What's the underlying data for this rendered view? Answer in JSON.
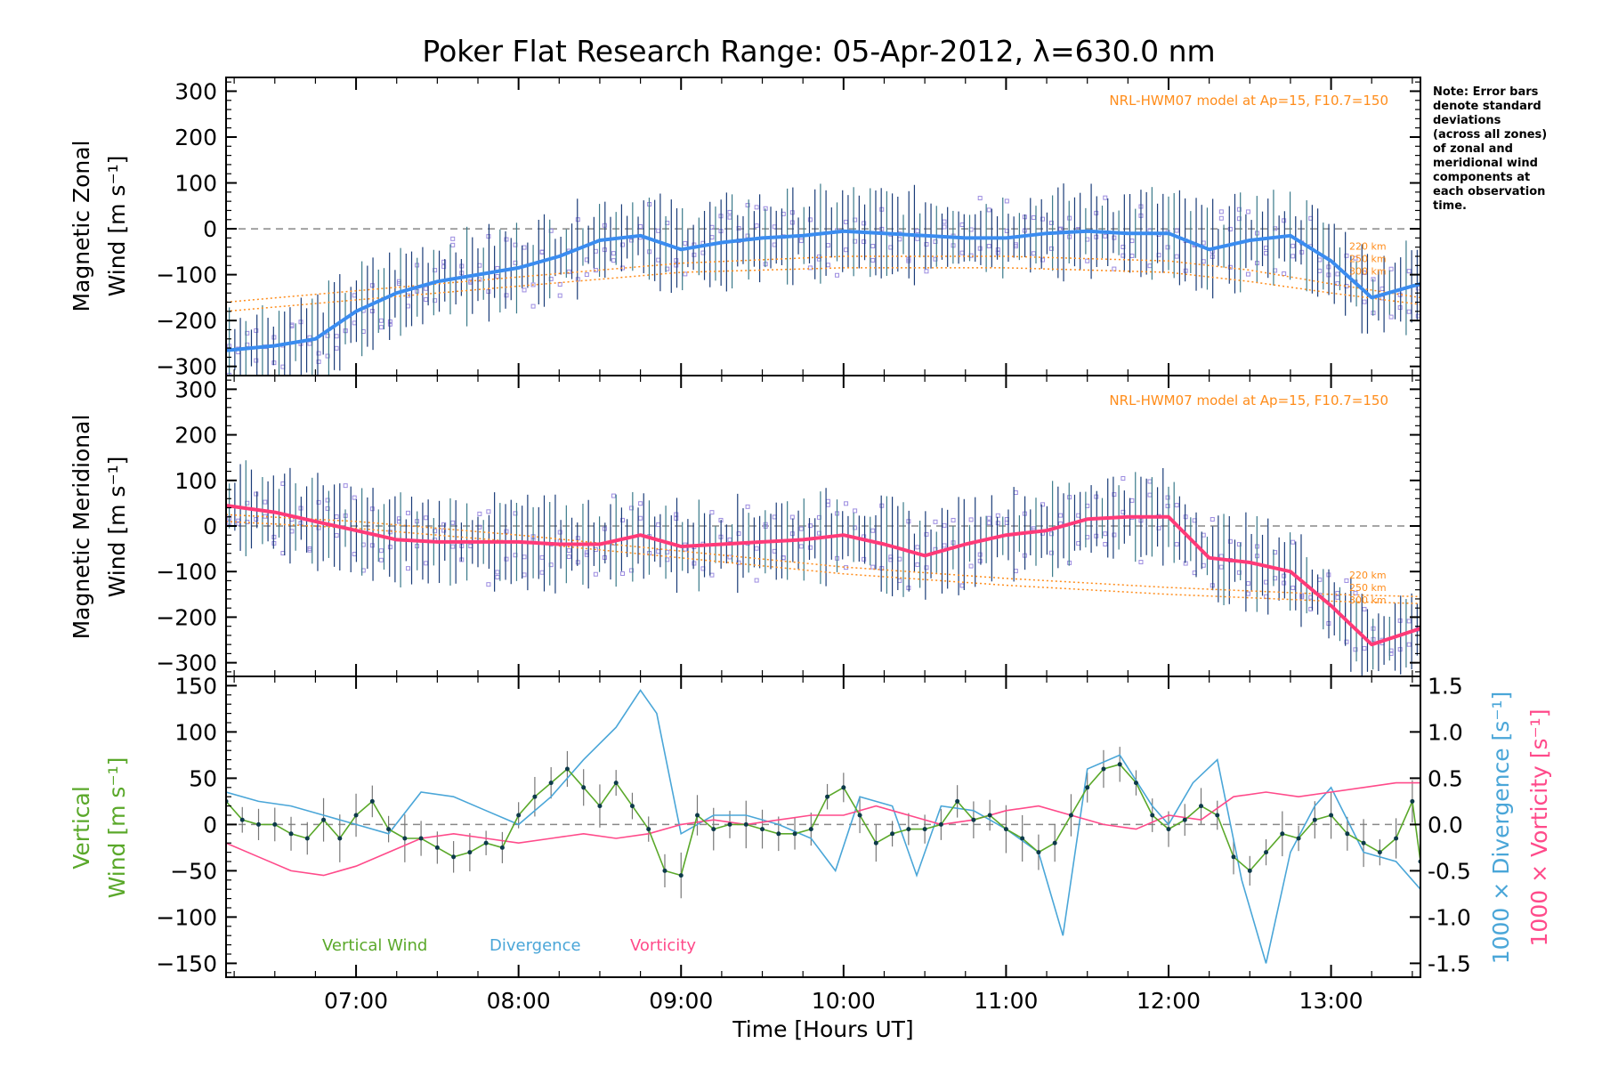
{
  "title": "Poker Flat Research Range: 05-Apr-2012, λ=630.0 nm",
  "note_lines": [
    "Note: Error bars",
    "denote standard",
    "deviations",
    "(across all zones)",
    "of zonal and",
    "meridional wind",
    "components at",
    "each observation",
    "time."
  ],
  "colors": {
    "zonal_mean": "#3a8cf0",
    "meridional_mean": "#ff3a78",
    "vertical": "#5aa82a",
    "divergence": "#4aa6d8",
    "vorticity": "#ff4a8a",
    "model": "#ff8c1a",
    "zone_points": "#9c8ce0",
    "errorbar": "#1a3c78"
  },
  "chart_data": [
    {
      "type": "line",
      "panel": "zonal",
      "ylabel_line1": "Magnetic Zonal",
      "ylabel_line2": "Wind [m s⁻¹]",
      "xlim": [
        6.2,
        13.55
      ],
      "ylim": [
        -320,
        330
      ],
      "yticks": [
        -300,
        -200,
        -100,
        0,
        100,
        200,
        300
      ],
      "xticks": [
        "07:00",
        "08:00",
        "09:00",
        "10:00",
        "11:00",
        "12:00",
        "13:00"
      ],
      "model_label": "NRL-HWM07 model at Ap=15, F10.7=150",
      "model_altitude_labels": [
        "220 km",
        "250 km",
        "300 km"
      ],
      "series": [
        {
          "role": "mean",
          "x": [
            6.2,
            6.5,
            6.75,
            7.0,
            7.25,
            7.5,
            7.75,
            8.0,
            8.25,
            8.5,
            8.75,
            9.0,
            9.25,
            9.5,
            9.75,
            10.0,
            10.25,
            10.5,
            10.75,
            11.0,
            11.25,
            11.5,
            11.75,
            12.0,
            12.25,
            12.5,
            12.75,
            13.0,
            13.25,
            13.55
          ],
          "y": [
            -265,
            -255,
            -240,
            -180,
            -140,
            -115,
            -100,
            -85,
            -60,
            -25,
            -15,
            -45,
            -30,
            -20,
            -15,
            -5,
            -10,
            -15,
            -20,
            -20,
            -10,
            -5,
            -10,
            -10,
            -45,
            -25,
            -15,
            -70,
            -150,
            -120
          ]
        },
        {
          "role": "model",
          "x": [
            6.2,
            7.0,
            8.0,
            9.0,
            10.0,
            11.0,
            12.0,
            12.5,
            13.0,
            13.55
          ],
          "y": [
            -160,
            -135,
            -105,
            -75,
            -60,
            -60,
            -70,
            -90,
            -120,
            -150
          ]
        },
        {
          "role": "model",
          "x": [
            6.2,
            7.0,
            8.0,
            9.0,
            10.0,
            11.0,
            12.0,
            12.5,
            13.0,
            13.55
          ],
          "y": [
            -180,
            -155,
            -125,
            -95,
            -85,
            -85,
            -95,
            -115,
            -140,
            -165
          ]
        }
      ]
    },
    {
      "type": "line",
      "panel": "meridional",
      "ylabel_line1": "Magnetic Meridional",
      "ylabel_line2": "Wind [m s⁻¹]",
      "xlim": [
        6.2,
        13.55
      ],
      "ylim": [
        -330,
        330
      ],
      "yticks": [
        -300,
        -200,
        -100,
        0,
        100,
        200,
        300
      ],
      "xticks": [
        "07:00",
        "08:00",
        "09:00",
        "10:00",
        "11:00",
        "12:00",
        "13:00"
      ],
      "model_label": "NRL-HWM07 model at Ap=15, F10.7=150",
      "model_altitude_labels": [
        "220 km",
        "250 km",
        "300 km"
      ],
      "series": [
        {
          "role": "mean",
          "x": [
            6.2,
            6.5,
            6.75,
            7.0,
            7.25,
            7.5,
            7.75,
            8.0,
            8.25,
            8.5,
            8.75,
            9.0,
            9.25,
            9.5,
            9.75,
            10.0,
            10.25,
            10.5,
            10.75,
            11.0,
            11.25,
            11.5,
            11.75,
            12.0,
            12.25,
            12.5,
            12.75,
            13.0,
            13.25,
            13.55
          ],
          "y": [
            45,
            30,
            10,
            -10,
            -30,
            -35,
            -35,
            -35,
            -40,
            -40,
            -20,
            -45,
            -40,
            -35,
            -30,
            -20,
            -40,
            -65,
            -40,
            -20,
            -10,
            15,
            20,
            20,
            -70,
            -80,
            -100,
            -175,
            -260,
            -225
          ]
        },
        {
          "role": "model",
          "x": [
            6.2,
            7.0,
            8.0,
            9.0,
            10.0,
            11.0,
            12.0,
            13.0,
            13.55
          ],
          "y": [
            25,
            10,
            -20,
            -55,
            -90,
            -115,
            -135,
            -150,
            -155
          ]
        },
        {
          "role": "model",
          "x": [
            6.2,
            7.0,
            8.0,
            9.0,
            10.0,
            11.0,
            12.0,
            13.0,
            13.55
          ],
          "y": [
            10,
            -5,
            -35,
            -70,
            -105,
            -130,
            -150,
            -165,
            -170
          ]
        }
      ]
    },
    {
      "type": "line",
      "panel": "vertical",
      "ylabel_green_line1": "Vertical",
      "ylabel_green_line2": "Wind [m s⁻¹]",
      "ylabel_right_blue": "1000 × Divergence [s⁻¹]",
      "ylabel_right_pink": "1000 × Vorticity [s⁻¹]",
      "xlabel": "Time [Hours UT]",
      "xlim": [
        6.2,
        13.55
      ],
      "ylim": [
        -165,
        160
      ],
      "yticks": [
        -150,
        -100,
        -50,
        0,
        50,
        100,
        150
      ],
      "y2lim": [
        -1.65,
        1.6
      ],
      "y2ticks": [
        -1.5,
        -1.0,
        -0.5,
        0.0,
        0.5,
        1.0,
        1.5
      ],
      "xticks": [
        "07:00",
        "08:00",
        "09:00",
        "10:00",
        "11:00",
        "12:00",
        "13:00"
      ],
      "legend": [
        "Vertical Wind",
        "Divergence",
        "Vorticity"
      ],
      "series": [
        {
          "name": "Vertical Wind",
          "axis": "left",
          "x": [
            6.2,
            6.3,
            6.4,
            6.5,
            6.6,
            6.7,
            6.8,
            6.9,
            7.0,
            7.1,
            7.2,
            7.3,
            7.4,
            7.5,
            7.6,
            7.7,
            7.8,
            7.9,
            8.0,
            8.1,
            8.2,
            8.3,
            8.4,
            8.5,
            8.6,
            8.7,
            8.8,
            8.9,
            9.0,
            9.1,
            9.2,
            9.3,
            9.4,
            9.5,
            9.6,
            9.7,
            9.8,
            9.9,
            10.0,
            10.1,
            10.2,
            10.3,
            10.4,
            10.5,
            10.6,
            10.7,
            10.8,
            10.9,
            11.0,
            11.1,
            11.2,
            11.3,
            11.4,
            11.5,
            11.6,
            11.7,
            11.8,
            11.9,
            12.0,
            12.1,
            12.2,
            12.3,
            12.4,
            12.5,
            12.6,
            12.7,
            12.8,
            12.9,
            13.0,
            13.1,
            13.2,
            13.3,
            13.4,
            13.5,
            13.55
          ],
          "y": [
            25,
            5,
            0,
            0,
            -10,
            -15,
            5,
            -15,
            10,
            25,
            -5,
            -15,
            -15,
            -25,
            -35,
            -30,
            -20,
            -25,
            10,
            30,
            45,
            60,
            40,
            20,
            45,
            20,
            -5,
            -50,
            -55,
            10,
            -5,
            0,
            0,
            -5,
            -10,
            -10,
            -5,
            30,
            40,
            10,
            -20,
            -10,
            -5,
            -5,
            0,
            25,
            5,
            10,
            -5,
            -15,
            -30,
            -20,
            10,
            40,
            60,
            65,
            45,
            10,
            -5,
            5,
            20,
            10,
            -35,
            -50,
            -30,
            -10,
            -15,
            5,
            10,
            -10,
            -20,
            -30,
            -15,
            25,
            -40
          ]
        },
        {
          "name": "Divergence",
          "axis": "right",
          "x": [
            6.2,
            6.4,
            6.6,
            6.8,
            7.0,
            7.2,
            7.4,
            7.6,
            7.8,
            8.0,
            8.2,
            8.4,
            8.6,
            8.75,
            8.85,
            9.0,
            9.2,
            9.4,
            9.6,
            9.8,
            9.95,
            10.1,
            10.3,
            10.45,
            10.6,
            10.8,
            11.0,
            11.2,
            11.35,
            11.5,
            11.7,
            11.9,
            12.0,
            12.15,
            12.3,
            12.45,
            12.6,
            12.75,
            12.9,
            13.0,
            13.2,
            13.4,
            13.55
          ],
          "y": [
            0.35,
            0.25,
            0.2,
            0.1,
            0.0,
            -0.1,
            0.35,
            0.3,
            0.15,
            0.0,
            0.3,
            0.7,
            1.05,
            1.45,
            1.2,
            -0.1,
            0.1,
            0.1,
            0.0,
            -0.15,
            -0.5,
            0.3,
            0.2,
            -0.55,
            0.2,
            0.15,
            -0.05,
            -0.3,
            -1.2,
            0.6,
            0.75,
            0.2,
            0.0,
            0.45,
            0.7,
            -0.6,
            -1.5,
            -0.3,
            0.2,
            0.4,
            -0.3,
            -0.4,
            -0.7
          ]
        },
        {
          "name": "Vorticity",
          "axis": "right",
          "x": [
            6.2,
            6.4,
            6.6,
            6.8,
            7.0,
            7.2,
            7.4,
            7.6,
            7.8,
            8.0,
            8.2,
            8.4,
            8.6,
            8.8,
            9.0,
            9.2,
            9.4,
            9.6,
            9.8,
            10.0,
            10.2,
            10.4,
            10.6,
            10.8,
            11.0,
            11.2,
            11.4,
            11.6,
            11.8,
            12.0,
            12.2,
            12.4,
            12.6,
            12.8,
            13.0,
            13.2,
            13.4,
            13.55
          ],
          "y": [
            -0.2,
            -0.35,
            -0.5,
            -0.55,
            -0.45,
            -0.3,
            -0.15,
            -0.1,
            -0.15,
            -0.2,
            -0.15,
            -0.1,
            -0.15,
            -0.1,
            0.0,
            0.05,
            0.0,
            0.05,
            0.1,
            0.1,
            0.2,
            0.1,
            0.0,
            0.05,
            0.15,
            0.2,
            0.1,
            0.0,
            -0.05,
            0.1,
            0.05,
            0.3,
            0.35,
            0.3,
            0.35,
            0.4,
            0.45,
            0.45
          ]
        }
      ]
    }
  ]
}
